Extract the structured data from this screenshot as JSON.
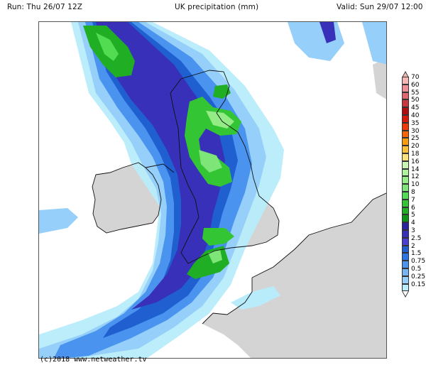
{
  "header": {
    "run": "Run: Thu 26/07 12Z",
    "title": "UK precipitation (mm)",
    "valid": "Valid: Sun 29/07 12:00"
  },
  "footer": {
    "credit": "(c)2018 www.netweather.tv"
  },
  "map": {
    "region": "UK, Ireland, northern France",
    "land_color": "#d8d8d8",
    "sea_color": "#ffffff",
    "coastline_color": "#111111"
  },
  "legend": {
    "unit": "mm",
    "levels": [
      {
        "label": "70",
        "color": "#f7b6b6"
      },
      {
        "label": "60",
        "color": "#ef8f95"
      },
      {
        "label": "55",
        "color": "#e2666d"
      },
      {
        "label": "50",
        "color": "#c9383f"
      },
      {
        "label": "45",
        "color": "#b00d10"
      },
      {
        "label": "40",
        "color": "#d81a0a"
      },
      {
        "label": "35",
        "color": "#f23a08"
      },
      {
        "label": "30",
        "color": "#f86608"
      },
      {
        "label": "25",
        "color": "#fb9d0a"
      },
      {
        "label": "20",
        "color": "#fbbf3a"
      },
      {
        "label": "18",
        "color": "#fde27a"
      },
      {
        "label": "16",
        "color": "#c8f7b2"
      },
      {
        "label": "14",
        "color": "#aef29a"
      },
      {
        "label": "12",
        "color": "#93ec86"
      },
      {
        "label": "10",
        "color": "#7ee678"
      },
      {
        "label": "8",
        "color": "#52dc52"
      },
      {
        "label": "7",
        "color": "#34c534"
      },
      {
        "label": "6",
        "color": "#1fae24"
      },
      {
        "label": "5",
        "color": "#0c9414"
      },
      {
        "label": "4",
        "color": "#2a24a0"
      },
      {
        "label": "3",
        "color": "#3830b8"
      },
      {
        "label": "2.5",
        "color": "#4a3fd0"
      },
      {
        "label": "2",
        "color": "#1f5fd0"
      },
      {
        "label": "1.5",
        "color": "#2a76e6"
      },
      {
        "label": "0.75",
        "color": "#4a94f0"
      },
      {
        "label": "0.5",
        "color": "#76b4f6"
      },
      {
        "label": "0.25",
        "color": "#96d0fa"
      },
      {
        "label": "0.15",
        "color": "#b8ecfb"
      }
    ]
  }
}
